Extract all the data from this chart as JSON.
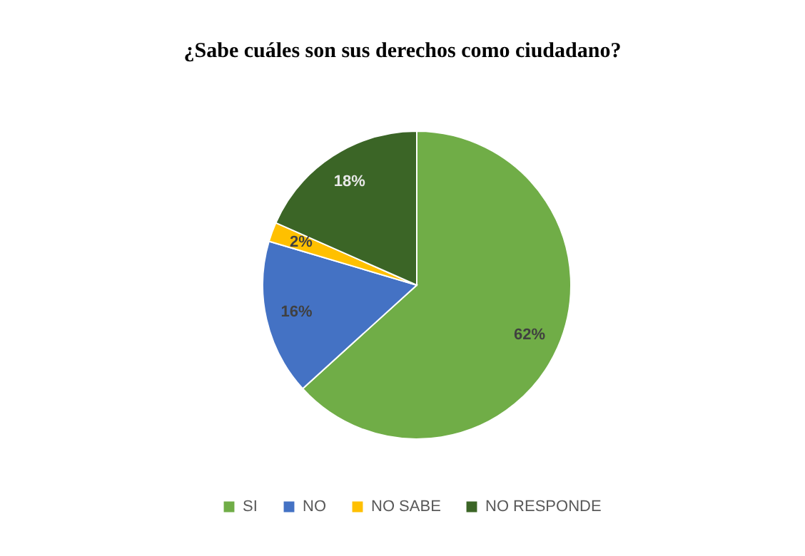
{
  "chart_data": {
    "type": "pie",
    "title": "¿Sabe cuáles son sus derechos como ciudadano?",
    "categories": [
      "SI",
      "NO",
      "NO SABE",
      "NO RESPONDE"
    ],
    "values": [
      62,
      16,
      2,
      18
    ],
    "colors": [
      "#70ad47",
      "#4472c4",
      "#ffc000",
      "#3b6526"
    ],
    "value_labels": [
      "62%",
      "16%",
      "2%",
      "18%"
    ],
    "legend": "bottom"
  }
}
